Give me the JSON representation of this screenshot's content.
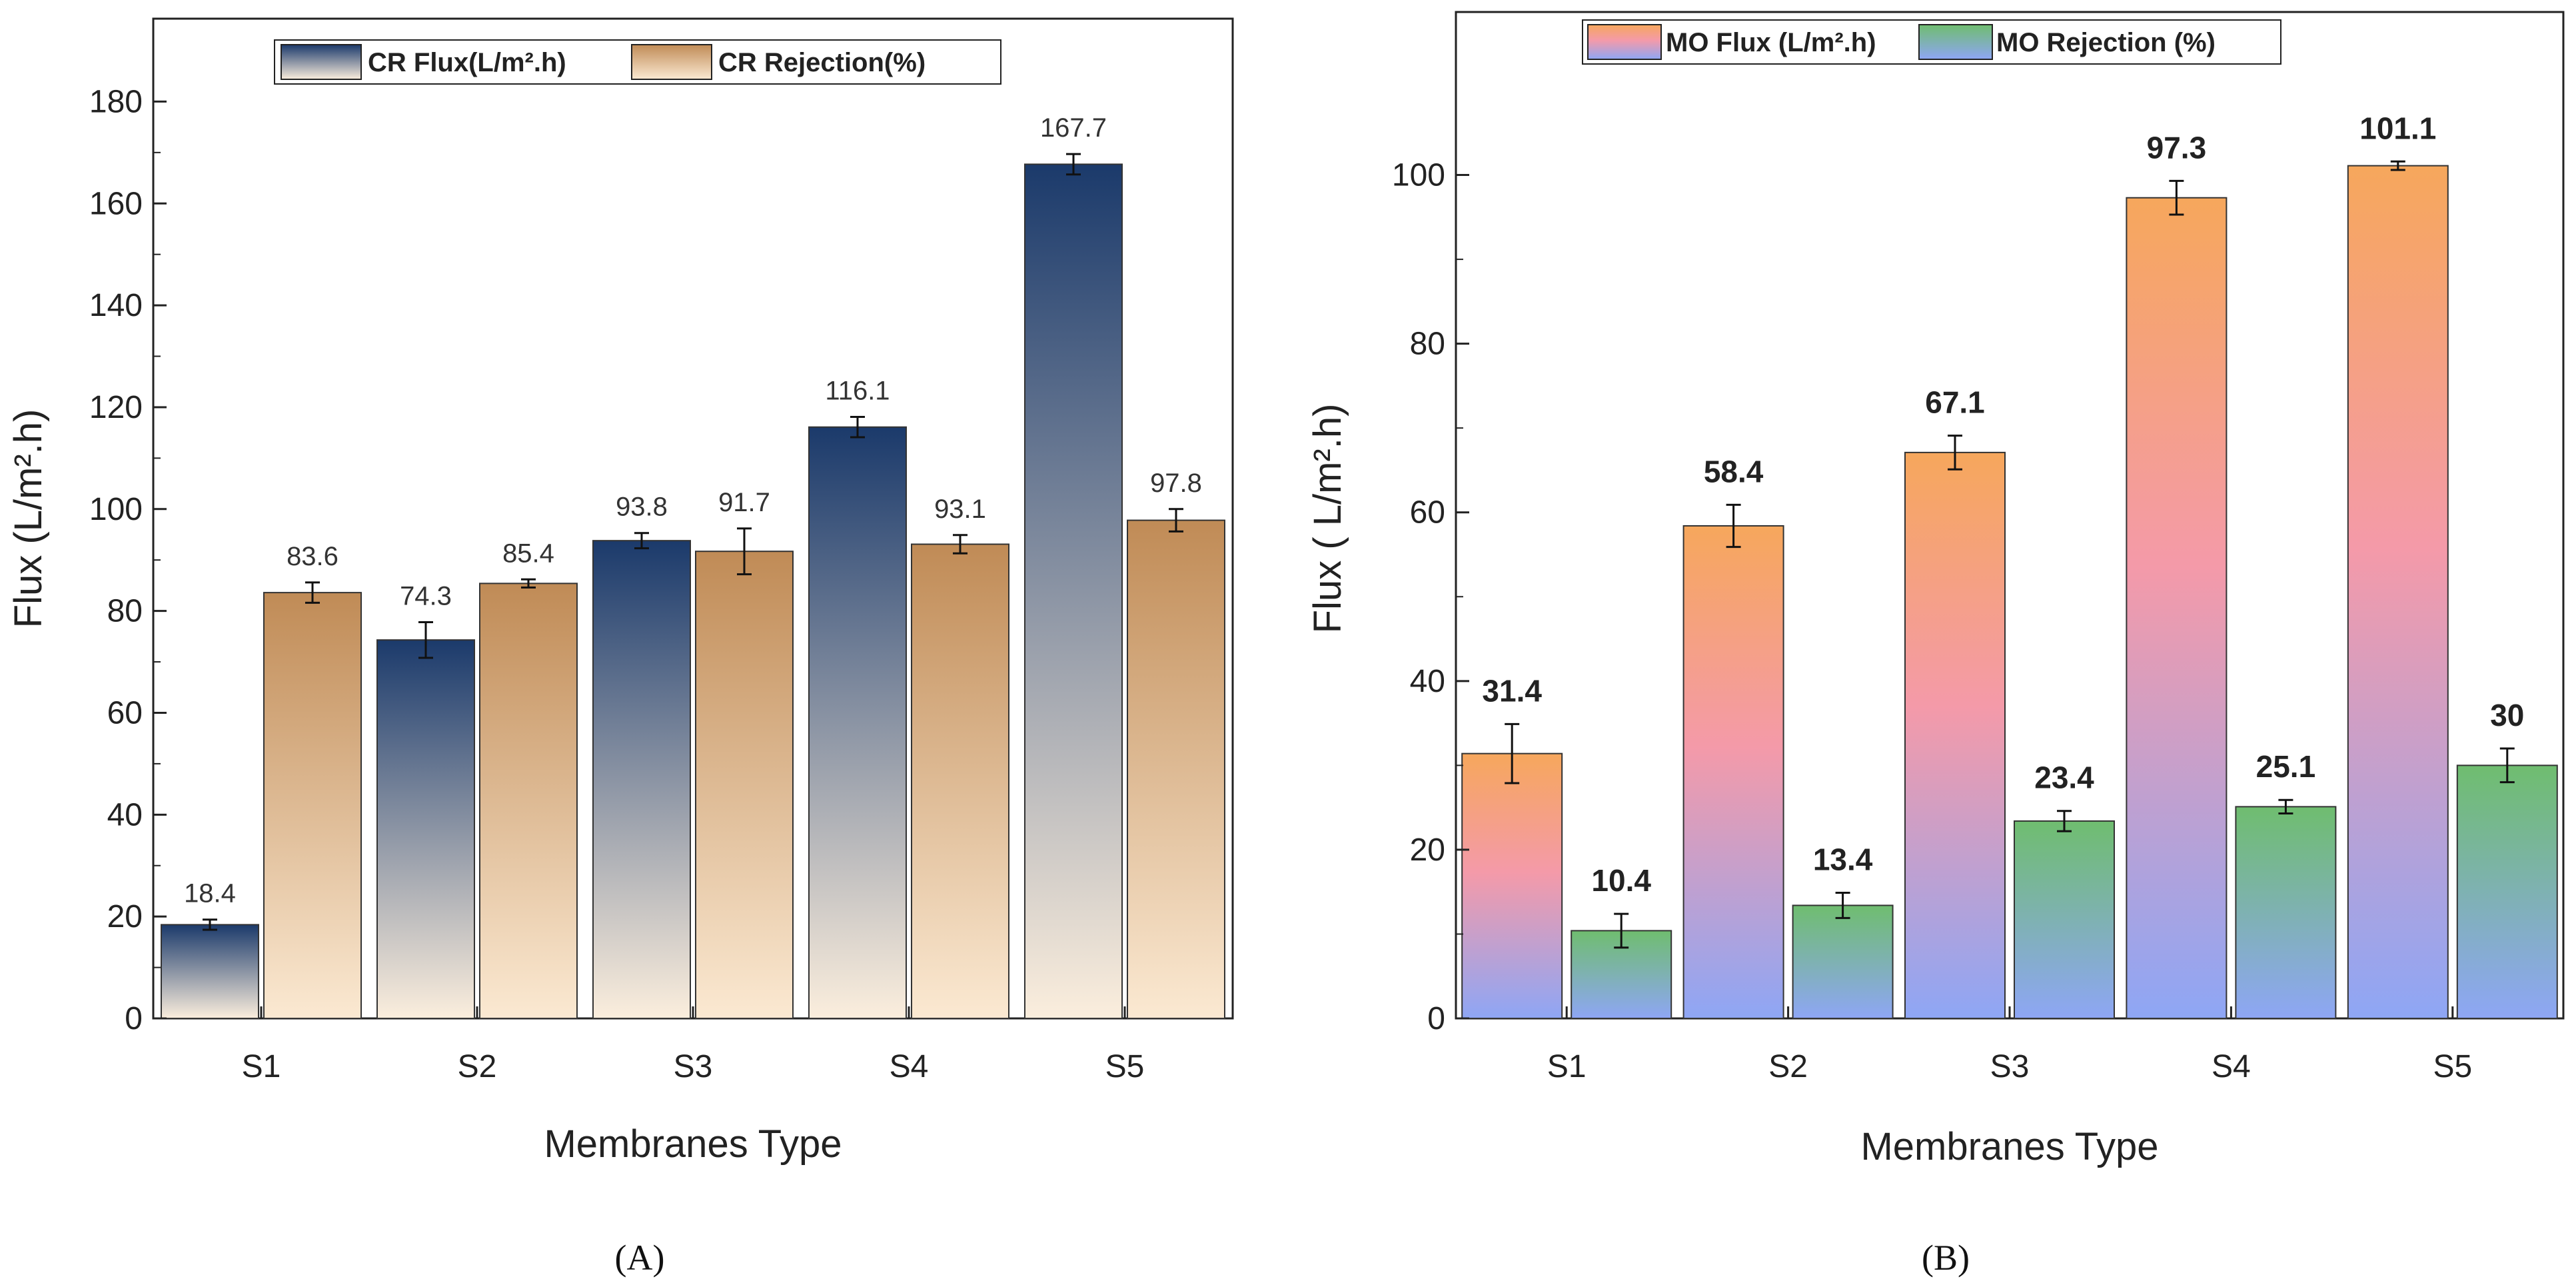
{
  "colors": {
    "cr_flux_top": "#1b3a6b",
    "cr_flux_bottom": "#fbeedd",
    "cr_rej_top": "#c08b56",
    "cr_rej_bottom": "#fbe9d2",
    "mo_flux_top": "#f6a75c",
    "mo_flux_mid": "#f49aa9",
    "mo_flux_bottom": "#8ea6f5",
    "mo_rej_top": "#6fbd6f",
    "mo_rej_bottom": "#8ea6f5"
  },
  "chart_data": [
    {
      "panel": "(A)",
      "type": "bar",
      "categories": [
        "S1",
        "S2",
        "S3",
        "S4",
        "S5"
      ],
      "xlabel": "Membranes Type",
      "ylabel": "Flux (L/m².h)",
      "ylim": [
        0,
        190
      ],
      "yticks": [
        0,
        20,
        40,
        60,
        80,
        100,
        120,
        140,
        160,
        180
      ],
      "legend": "top-center",
      "series": [
        {
          "name": "CR Flux(L/m².h)",
          "values": [
            18.4,
            74.3,
            93.8,
            116.1,
            167.7
          ],
          "errors": [
            1.0,
            3.5,
            1.5,
            2.0,
            2.0
          ],
          "labels": [
            "18.4",
            "74.3",
            "93.8",
            "116.1",
            "167.7"
          ]
        },
        {
          "name": "CR Rejection(%)",
          "values": [
            83.6,
            85.4,
            91.7,
            93.1,
            97.8
          ],
          "errors": [
            2.0,
            0.8,
            4.5,
            1.8,
            2.2
          ],
          "labels": [
            "83.6",
            "85.4",
            "91.7",
            "93.1",
            "97.8"
          ]
        }
      ]
    },
    {
      "panel": "(B)",
      "type": "bar",
      "categories": [
        "S1",
        "S2",
        "S3",
        "S4",
        "S5"
      ],
      "xlabel": "Membranes Type",
      "ylabel": "Flux ( L/m².h)",
      "ylim": [
        0,
        110
      ],
      "yticks": [
        0,
        20,
        40,
        60,
        80,
        100
      ],
      "legend": "top-center",
      "series": [
        {
          "name": "MO Flux (L/m².h)",
          "values": [
            31.4,
            58.4,
            67.1,
            97.3,
            101.1
          ],
          "errors": [
            3.5,
            2.5,
            2.0,
            2.0,
            0.5
          ],
          "labels": [
            "31.4",
            "58.4",
            "67.1",
            "97.3",
            "101.1"
          ]
        },
        {
          "name": "MO Rejection (%)",
          "values": [
            10.4,
            13.4,
            23.4,
            25.1,
            30
          ],
          "errors": [
            2.0,
            1.5,
            1.2,
            0.8,
            2.0
          ],
          "labels": [
            "10.4",
            "13.4",
            "23.4",
            "25.1",
            "30"
          ]
        }
      ]
    }
  ]
}
